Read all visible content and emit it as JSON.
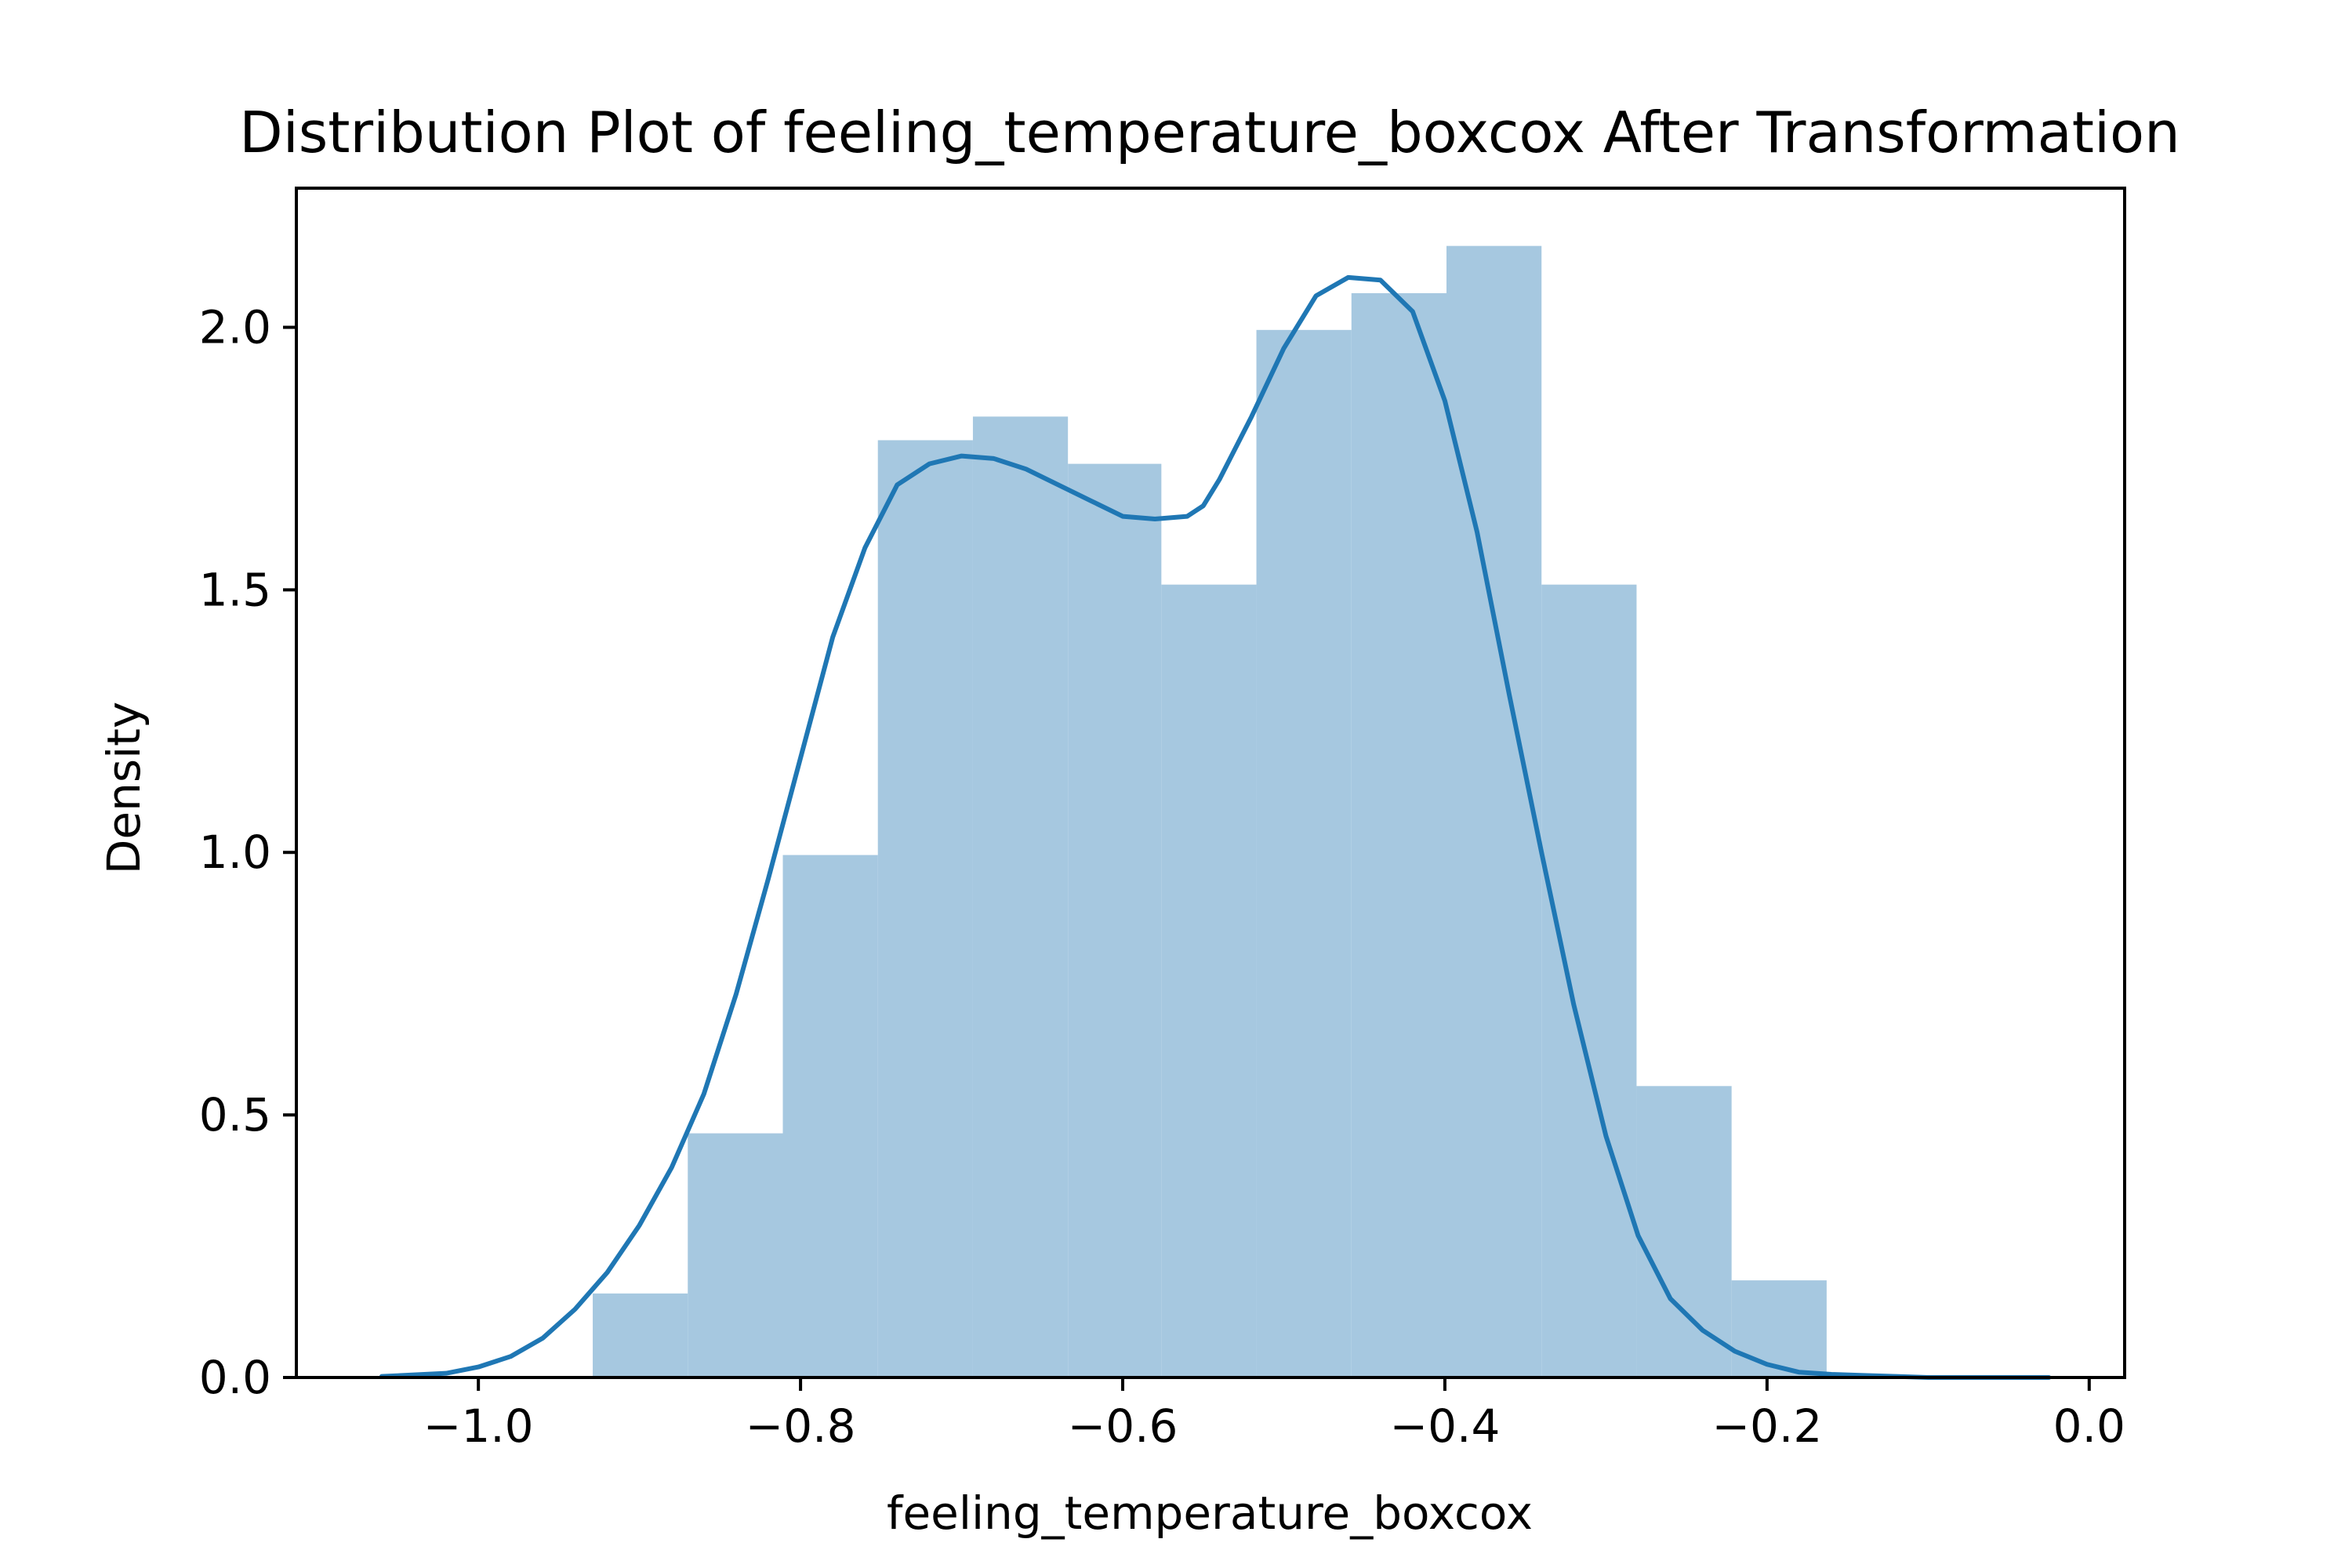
{
  "chart_data": {
    "type": "bar",
    "title": "Distribution Plot of feeling_temperature_boxcox After Transformation",
    "xlabel": "feeling_temperature_boxcox",
    "ylabel": "Density",
    "xlim": [
      -1.113,
      0.022
    ],
    "ylim": [
      0,
      2.265
    ],
    "x_ticks": [
      {
        "value": -1.0,
        "label": "−1.0"
      },
      {
        "value": -0.8,
        "label": "−0.8"
      },
      {
        "value": -0.6,
        "label": "−0.6"
      },
      {
        "value": -0.4,
        "label": "−0.4"
      },
      {
        "value": -0.2,
        "label": "−0.2"
      },
      {
        "value": 0.0,
        "label": "0.0"
      }
    ],
    "y_ticks": [
      {
        "value": 0.0,
        "label": "0.0"
      },
      {
        "value": 0.5,
        "label": "0.5"
      },
      {
        "value": 1.0,
        "label": "1.0"
      },
      {
        "value": 1.5,
        "label": "1.5"
      },
      {
        "value": 2.0,
        "label": "2.0"
      }
    ],
    "grid": false,
    "histogram": {
      "color": "#a6c8e0",
      "bins": [
        {
          "x0": -0.929,
          "x1": -0.87,
          "density": 0.16
        },
        {
          "x0": -0.87,
          "x1": -0.811,
          "density": 0.465
        },
        {
          "x0": -0.811,
          "x1": -0.752,
          "density": 0.995
        },
        {
          "x0": -0.752,
          "x1": -0.693,
          "density": 1.785
        },
        {
          "x0": -0.693,
          "x1": -0.634,
          "density": 1.83
        },
        {
          "x0": -0.634,
          "x1": -0.576,
          "density": 1.74
        },
        {
          "x0": -0.576,
          "x1": -0.517,
          "density": 1.51
        },
        {
          "x0": -0.517,
          "x1": -0.458,
          "density": 1.995
        },
        {
          "x0": -0.458,
          "x1": -0.399,
          "density": 2.065
        },
        {
          "x0": -0.399,
          "x1": -0.34,
          "density": 2.155
        },
        {
          "x0": -0.34,
          "x1": -0.281,
          "density": 1.51
        },
        {
          "x0": -0.281,
          "x1": -0.222,
          "density": 0.555
        },
        {
          "x0": -0.222,
          "x1": -0.163,
          "density": 0.185
        }
      ]
    },
    "kde": {
      "color": "#1f77b4",
      "x": [
        -1.06,
        -1.02,
        -1.0,
        -0.98,
        -0.96,
        -0.94,
        -0.92,
        -0.9,
        -0.88,
        -0.86,
        -0.84,
        -0.82,
        -0.8,
        -0.78,
        -0.76,
        -0.74,
        -0.72,
        -0.7,
        -0.68,
        -0.66,
        -0.64,
        -0.62,
        -0.6,
        -0.58,
        -0.56,
        -0.55,
        -0.54,
        -0.52,
        -0.5,
        -0.48,
        -0.46,
        -0.44,
        -0.42,
        -0.4,
        -0.38,
        -0.36,
        -0.34,
        -0.32,
        -0.3,
        -0.28,
        -0.26,
        -0.24,
        -0.22,
        -0.2,
        -0.18,
        -0.16,
        -0.14,
        -0.12,
        -0.1,
        -0.08,
        -0.06,
        -0.04,
        -0.025
      ],
      "y": [
        0.002,
        0.008,
        0.02,
        0.04,
        0.075,
        0.13,
        0.2,
        0.29,
        0.4,
        0.54,
        0.73,
        0.95,
        1.18,
        1.41,
        1.58,
        1.7,
        1.74,
        1.755,
        1.75,
        1.73,
        1.7,
        1.67,
        1.64,
        1.635,
        1.64,
        1.66,
        1.71,
        1.83,
        1.96,
        2.06,
        2.095,
        2.09,
        2.03,
        1.86,
        1.61,
        1.3,
        1.0,
        0.71,
        0.46,
        0.27,
        0.15,
        0.09,
        0.05,
        0.025,
        0.01,
        0.006,
        0.004,
        0.002,
        0.0,
        0.0,
        0.0,
        0.0,
        0.0
      ]
    }
  }
}
